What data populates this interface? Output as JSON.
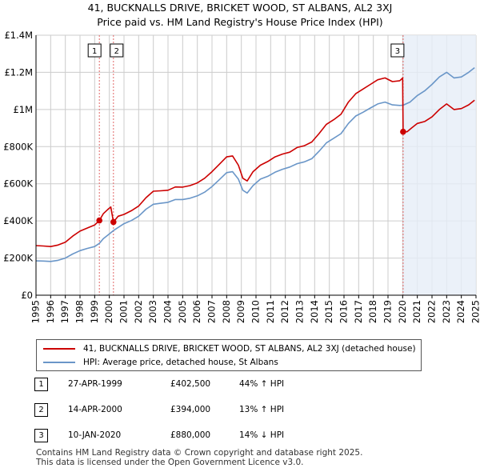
{
  "header": {
    "title_line1": "41, BUCKNALLS DRIVE, BRICKET WOOD, ST ALBANS, AL2 3XJ",
    "title_line2": "Price paid vs. HM Land Registry's House Price Index (HPI)"
  },
  "colors": {
    "property": "#cc0000",
    "hpi": "#6a96c8",
    "shade": "#e6edf7",
    "vline": "#e06666",
    "grid": "#cccccc"
  },
  "chart_data": {
    "type": "line",
    "xlim": [
      1995,
      2025
    ],
    "ylim": [
      0,
      1400000
    ],
    "x_ticks": [
      1995,
      1996,
      1997,
      1998,
      1999,
      2000,
      2001,
      2002,
      2003,
      2004,
      2005,
      2006,
      2007,
      2008,
      2009,
      2010,
      2011,
      2012,
      2013,
      2014,
      2015,
      2016,
      2017,
      2018,
      2019,
      2020,
      2021,
      2022,
      2023,
      2024,
      2025
    ],
    "y_ticks": [
      {
        "value": 0,
        "label": "£0"
      },
      {
        "value": 200000,
        "label": "£200K"
      },
      {
        "value": 400000,
        "label": "£400K"
      },
      {
        "value": 600000,
        "label": "£600K"
      },
      {
        "value": 800000,
        "label": "£800K"
      },
      {
        "value": 1000000,
        "label": "£1M"
      },
      {
        "value": 1200000,
        "label": "£1.2M"
      },
      {
        "value": 1400000,
        "label": "£1.4M"
      }
    ],
    "series": [
      {
        "name": "41, BUCKNALLS DRIVE, BRICKET WOOD, ST ALBANS, AL2 3XJ (detached house)",
        "color": "#cc0000",
        "points": [
          [
            1995.0,
            267000
          ],
          [
            1995.5,
            265000
          ],
          [
            1996.0,
            262000
          ],
          [
            1996.5,
            270000
          ],
          [
            1997.0,
            285000
          ],
          [
            1997.5,
            318000
          ],
          [
            1998.0,
            345000
          ],
          [
            1998.5,
            362000
          ],
          [
            1999.0,
            378000
          ],
          [
            1999.32,
            402500
          ],
          [
            1999.6,
            440000
          ],
          [
            1999.9,
            462000
          ],
          [
            2000.1,
            475000
          ],
          [
            2000.28,
            394000
          ],
          [
            2000.6,
            425000
          ],
          [
            2001.0,
            435000
          ],
          [
            2001.5,
            455000
          ],
          [
            2002.0,
            480000
          ],
          [
            2002.5,
            525000
          ],
          [
            2003.0,
            560000
          ],
          [
            2003.5,
            562000
          ],
          [
            2004.0,
            565000
          ],
          [
            2004.5,
            583000
          ],
          [
            2005.0,
            582000
          ],
          [
            2005.5,
            590000
          ],
          [
            2006.0,
            605000
          ],
          [
            2006.5,
            630000
          ],
          [
            2007.0,
            665000
          ],
          [
            2007.5,
            705000
          ],
          [
            2008.0,
            745000
          ],
          [
            2008.4,
            750000
          ],
          [
            2008.8,
            700000
          ],
          [
            2009.1,
            630000
          ],
          [
            2009.4,
            615000
          ],
          [
            2009.8,
            665000
          ],
          [
            2010.3,
            700000
          ],
          [
            2010.8,
            720000
          ],
          [
            2011.3,
            745000
          ],
          [
            2011.8,
            760000
          ],
          [
            2012.3,
            770000
          ],
          [
            2012.8,
            795000
          ],
          [
            2013.3,
            805000
          ],
          [
            2013.8,
            825000
          ],
          [
            2014.3,
            870000
          ],
          [
            2014.8,
            920000
          ],
          [
            2015.3,
            945000
          ],
          [
            2015.8,
            975000
          ],
          [
            2016.3,
            1040000
          ],
          [
            2016.8,
            1085000
          ],
          [
            2017.3,
            1110000
          ],
          [
            2017.8,
            1135000
          ],
          [
            2018.3,
            1160000
          ],
          [
            2018.8,
            1170000
          ],
          [
            2019.3,
            1150000
          ],
          [
            2019.8,
            1155000
          ],
          [
            2020.0,
            1170000
          ],
          [
            2020.03,
            880000
          ],
          [
            2020.3,
            880000
          ],
          [
            2020.6,
            900000
          ],
          [
            2021.0,
            925000
          ],
          [
            2021.5,
            935000
          ],
          [
            2022.0,
            960000
          ],
          [
            2022.5,
            1000000
          ],
          [
            2023.0,
            1030000
          ],
          [
            2023.5,
            1000000
          ],
          [
            2024.0,
            1005000
          ],
          [
            2024.5,
            1025000
          ],
          [
            2024.9,
            1050000
          ]
        ]
      },
      {
        "name": "HPI: Average price, detached house, St Albans",
        "color": "#6a96c8",
        "points": [
          [
            1995.0,
            185000
          ],
          [
            1995.5,
            184000
          ],
          [
            1996.0,
            182000
          ],
          [
            1996.5,
            188000
          ],
          [
            1997.0,
            200000
          ],
          [
            1997.5,
            222000
          ],
          [
            1998.0,
            240000
          ],
          [
            1998.5,
            252000
          ],
          [
            1999.0,
            262000
          ],
          [
            1999.32,
            279000
          ],
          [
            1999.6,
            305000
          ],
          [
            2000.0,
            330000
          ],
          [
            2000.28,
            348000
          ],
          [
            2000.6,
            365000
          ],
          [
            2001.0,
            385000
          ],
          [
            2001.5,
            402000
          ],
          [
            2002.0,
            425000
          ],
          [
            2002.5,
            463000
          ],
          [
            2003.0,
            490000
          ],
          [
            2003.5,
            495000
          ],
          [
            2004.0,
            500000
          ],
          [
            2004.5,
            515000
          ],
          [
            2005.0,
            515000
          ],
          [
            2005.5,
            522000
          ],
          [
            2006.0,
            535000
          ],
          [
            2006.5,
            555000
          ],
          [
            2007.0,
            585000
          ],
          [
            2007.5,
            622000
          ],
          [
            2008.0,
            660000
          ],
          [
            2008.4,
            665000
          ],
          [
            2008.8,
            625000
          ],
          [
            2009.1,
            565000
          ],
          [
            2009.4,
            550000
          ],
          [
            2009.8,
            590000
          ],
          [
            2010.3,
            625000
          ],
          [
            2010.8,
            640000
          ],
          [
            2011.3,
            662000
          ],
          [
            2011.8,
            678000
          ],
          [
            2012.3,
            690000
          ],
          [
            2012.8,
            708000
          ],
          [
            2013.3,
            718000
          ],
          [
            2013.8,
            735000
          ],
          [
            2014.3,
            775000
          ],
          [
            2014.8,
            820000
          ],
          [
            2015.3,
            845000
          ],
          [
            2015.8,
            870000
          ],
          [
            2016.3,
            925000
          ],
          [
            2016.8,
            965000
          ],
          [
            2017.3,
            985000
          ],
          [
            2017.8,
            1008000
          ],
          [
            2018.3,
            1030000
          ],
          [
            2018.8,
            1040000
          ],
          [
            2019.3,
            1025000
          ],
          [
            2019.8,
            1022000
          ],
          [
            2020.03,
            1023000
          ],
          [
            2020.5,
            1040000
          ],
          [
            2021.0,
            1075000
          ],
          [
            2021.5,
            1100000
          ],
          [
            2022.0,
            1135000
          ],
          [
            2022.5,
            1175000
          ],
          [
            2023.0,
            1200000
          ],
          [
            2023.5,
            1170000
          ],
          [
            2024.0,
            1175000
          ],
          [
            2024.5,
            1200000
          ],
          [
            2024.9,
            1225000
          ]
        ]
      }
    ],
    "sales": [
      {
        "num": "1",
        "year": 1999.32,
        "price": 402500
      },
      {
        "num": "2",
        "year": 2000.28,
        "price": 394000
      },
      {
        "num": "3",
        "year": 2020.03,
        "price": 880000
      }
    ],
    "shaded_range": [
      2020.03,
      2025
    ]
  },
  "legend": {
    "property_label": "41, BUCKNALLS DRIVE, BRICKET WOOD, ST ALBANS, AL2 3XJ (detached house)",
    "hpi_label": "HPI: Average price, detached house, St Albans"
  },
  "sales_table": [
    {
      "num": "1",
      "date": "27-APR-1999",
      "price": "£402,500",
      "hpi": "44% ↑ HPI"
    },
    {
      "num": "2",
      "date": "14-APR-2000",
      "price": "£394,000",
      "hpi": "13% ↑ HPI"
    },
    {
      "num": "3",
      "date": "10-JAN-2020",
      "price": "£880,000",
      "hpi": "14% ↓ HPI"
    }
  ],
  "footer": {
    "line1": "Contains HM Land Registry data © Crown copyright and database right 2025.",
    "line2": "This data is licensed under the Open Government Licence v3.0."
  }
}
